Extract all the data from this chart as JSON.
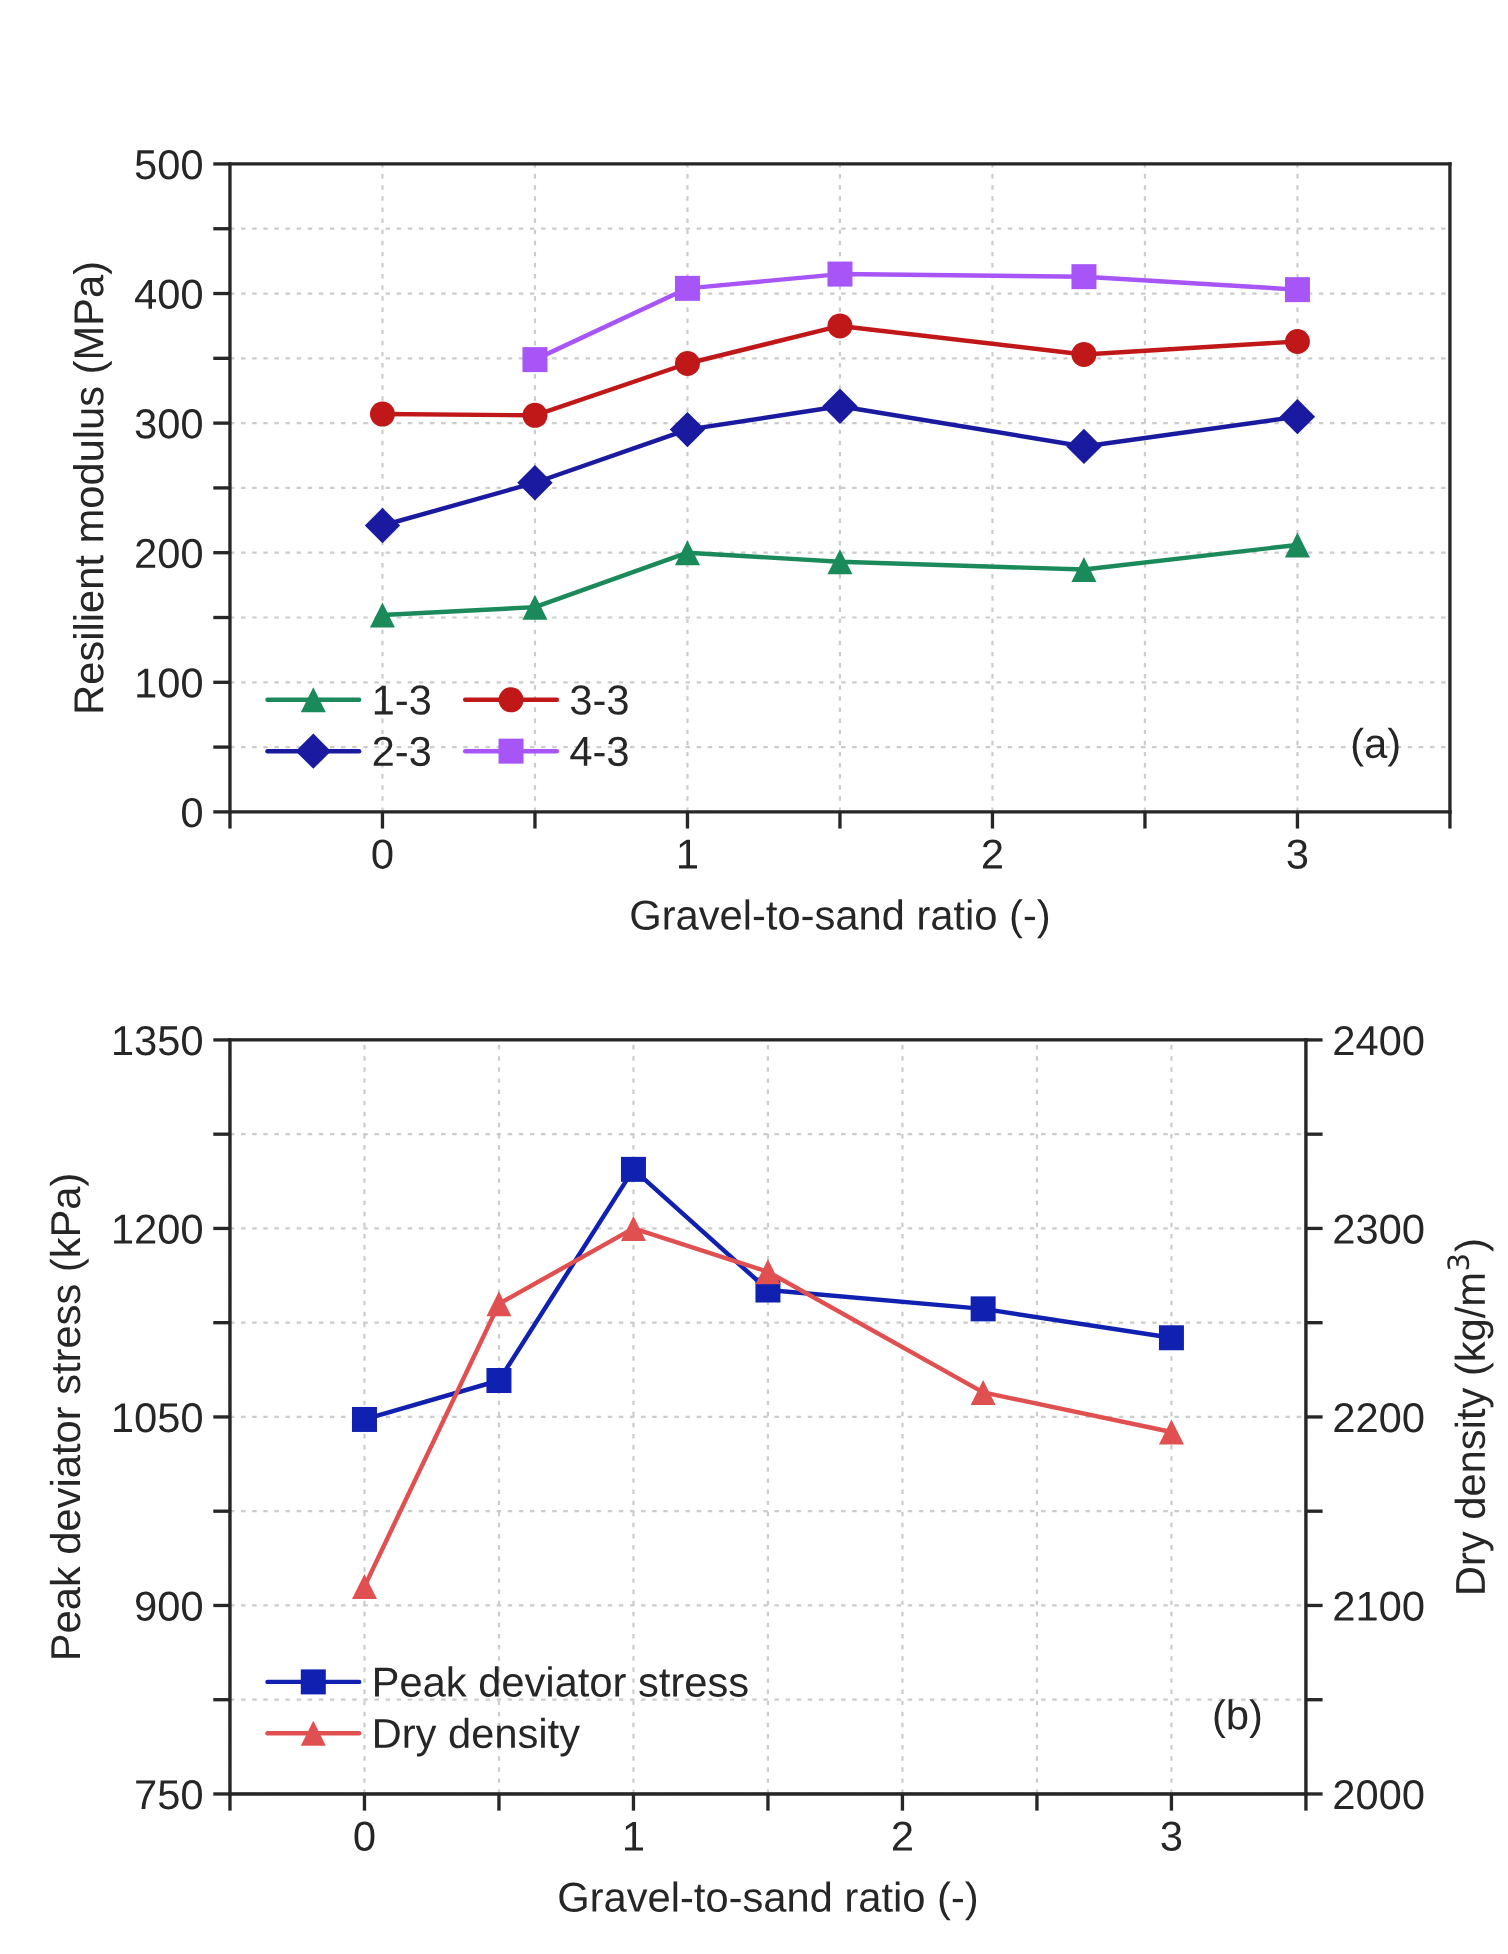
{
  "chart_data": [
    {
      "type": "line",
      "xlabel": "Gravel-to-sand ratio (-)",
      "ylabel": "Resilient modulus (MPa)",
      "xlim": [
        -0.5,
        3.5
      ],
      "xticks": [
        {
          "value": -0.5,
          "label": null
        },
        0,
        {
          "value": 0.5,
          "label": null
        },
        1,
        {
          "value": 1.5,
          "label": null
        },
        2,
        {
          "value": 2.5,
          "label": null
        },
        3,
        {
          "value": 3.5,
          "label": null
        }
      ],
      "ylim": [
        0,
        500
      ],
      "yticks": [
        0,
        {
          "value": 50,
          "label": null
        },
        100,
        {
          "value": 150,
          "label": null
        },
        200,
        {
          "value": 250,
          "label": null
        },
        300,
        {
          "value": 350,
          "label": null
        },
        400,
        {
          "value": 450,
          "label": null
        },
        500
      ],
      "grid": true,
      "legend": "bottom left",
      "annotations": [
        "(a)"
      ],
      "series": [
        {
          "name": "1-3",
          "color": "#1b8a5a",
          "marker": "triangle",
          "x": [
            0,
            0.5,
            1,
            1.5,
            2.3,
            3
          ],
          "values": [
            152,
            158,
            200,
            193,
            187,
            206
          ]
        },
        {
          "name": "2-3",
          "color": "#1a1aa0",
          "marker": "diamond",
          "x": [
            0,
            0.5,
            1,
            1.5,
            2.3,
            3
          ],
          "values": [
            221,
            254,
            295,
            313,
            282,
            305
          ]
        },
        {
          "name": "3-3",
          "color": "#c01818",
          "marker": "circle",
          "x": [
            0,
            0.5,
            1,
            1.5,
            2.3,
            3
          ],
          "values": [
            307,
            306,
            346,
            375,
            353,
            363
          ]
        },
        {
          "name": "4-3",
          "color": "#a855f7",
          "marker": "square",
          "x": [
            0.5,
            1,
            1.5,
            2.3,
            3
          ],
          "values": [
            349,
            404,
            415,
            413,
            403
          ]
        }
      ]
    },
    {
      "type": "line",
      "xlabel": "Gravel-to-sand ratio (-)",
      "ylabel": "Peak deviator stress (kPa)",
      "y2label": "Dry density (kg/m$^{3}$)",
      "xlim": [
        -0.5,
        3.5
      ],
      "xticks": [
        {
          "value": -0.5,
          "label": null
        },
        0,
        {
          "value": 0.5,
          "label": null
        },
        1,
        {
          "value": 1.5,
          "label": null
        },
        2,
        {
          "value": 2.5,
          "label": null
        },
        3,
        {
          "value": 3.5,
          "label": null
        }
      ],
      "ylim": [
        750,
        1350
      ],
      "yticks": [
        750,
        {
          "value": 825,
          "label": null
        },
        900,
        {
          "value": 975,
          "label": null
        },
        1050,
        {
          "value": 1125,
          "label": null
        },
        1200,
        {
          "value": 1275,
          "label": null
        },
        1350
      ],
      "y2lim": [
        2000,
        2400
      ],
      "y2ticks": [
        2000,
        {
          "value": 2050,
          "label": null
        },
        2100,
        {
          "value": 2150,
          "label": null
        },
        2200,
        {
          "value": 2250,
          "label": null
        },
        2300,
        {
          "value": 2350,
          "label": null
        },
        2400
      ],
      "grid": true,
      "legend": "bottom left",
      "annotations": [
        "(b)"
      ],
      "series": [
        {
          "name": "Peak deviator stress",
          "color": "#1020b0",
          "marker": "square",
          "x": [
            0,
            0.5,
            1,
            1.5,
            2.3,
            3
          ],
          "values": [
            1048,
            1079,
            1247,
            1151,
            1136,
            1113
          ]
        },
        {
          "name": "Dry density",
          "color": "#e05050",
          "marker": "triangle",
          "axis": "y2",
          "x": [
            0,
            0.5,
            1,
            1.5,
            2.3,
            3
          ],
          "values": [
            2110,
            2260,
            2300,
            2277,
            2213,
            2192
          ]
        }
      ]
    }
  ]
}
